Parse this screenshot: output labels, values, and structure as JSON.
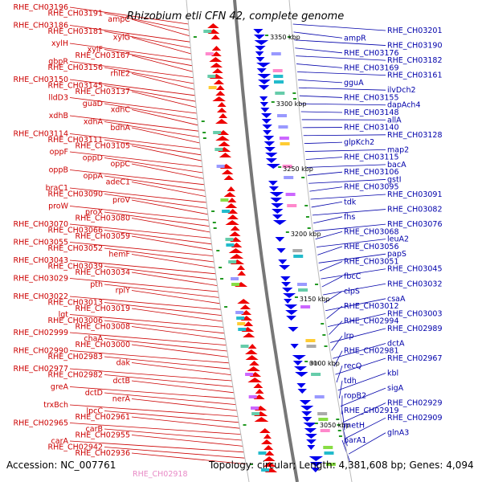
{
  "title": "Rhizobium etli CFN 42, complete genome",
  "footer": {
    "accession": "Accession: NC_007761",
    "topology": "Topology: circular; Length: 4,381,608 bp; Genes: 4,094",
    "truncated_label": "RHE_CH02918"
  },
  "colors": {
    "left_labels": "#cc0000",
    "right_labels": "#0000aa",
    "forward_genes": "#ee0000",
    "reverse_genes": "#0000ee",
    "backbone": "#777777",
    "tick": "#229922",
    "pink_label": "#e88ac6"
  },
  "kbp_marks": [
    {
      "label": "3350 kbp"
    },
    {
      "label": "3300 kbp"
    },
    {
      "label": "3250 kbp"
    },
    {
      "label": "3200 kbp"
    },
    {
      "label": "3150 kbp"
    },
    {
      "label": "3100 kbp"
    },
    {
      "label": "3050 kbp"
    }
  ],
  "left_labels": [
    "RHE_CH03196",
    "RHE_CH03191",
    "ampC",
    "RHE_CH03186",
    "RHE_CH03181",
    "xylG",
    "xylH",
    "xylF",
    "RHE_CH03167",
    "gbpR",
    "RHE_CH03156",
    "rhlE2",
    "RHE_CH03150",
    "RHE_CH03145",
    "RHE_CH03137",
    "lldD3",
    "guaD",
    "xdhC",
    "xdhB",
    "xdhA",
    "bdhA",
    "RHE_CH03114",
    "RHE_CH03111",
    "RHE_CH03105",
    "oppF",
    "oppD",
    "oppC",
    "oppB",
    "oppA",
    "adeC1",
    "braC1",
    "RHE_CH03090",
    "proV",
    "proW",
    "proX",
    "RHE_CH03080",
    "RHE_CH03070",
    "RHE_CH03066",
    "RHE_CH03059",
    "RHE_CH03055",
    "RHE_CH03052",
    "hemF",
    "RHE_CH03043",
    "RHE_CH03039",
    "RHE_CH03034",
    "RHE_CH03029",
    "pth",
    "rplY",
    "RHE_CH03022",
    "RHE_CH03013",
    "RHE_CH03019",
    "lgt",
    "RHE_CH03006",
    "RHE_CH03008",
    "RHE_CH02999",
    "chaA",
    "RHE_CH03000",
    "RHE_CH02990",
    "RHE_CH02983",
    "dak",
    "RHE_CH02977",
    "RHE_CH02982",
    "dctB",
    "greA",
    "dctD",
    "nerA",
    "trxBch",
    "lpcC",
    "RHE_CH02961",
    "RHE_CH02965",
    "carB",
    "RHE_CH02955",
    "carA",
    "RHE_CH02942",
    "RHE_CH02936"
  ],
  "right_labels": [
    "RHE_CH03201",
    "ampR",
    "RHE_CH03190",
    "RHE_CH03176",
    "RHE_CH03182",
    "RHE_CH03169",
    "RHE_CH03161",
    "gguA",
    "ilvDch2",
    "RHE_CH03155",
    "dapAch4",
    "RHE_CH03148",
    "allA",
    "RHE_CH03140",
    "RHE_CH03128",
    "glpKch2",
    "map2",
    "RHE_CH03115",
    "bacA",
    "RHE_CH03106",
    "gstI",
    "RHE_CH03095",
    "RHE_CH03091",
    "tdk",
    "RHE_CH03082",
    "fhs",
    "RHE_CH03076",
    "RHE_CH03068",
    "leuA2",
    "RHE_CH03056",
    "papS",
    "RHE_CH03051",
    "RHE_CH03045",
    "fbcC",
    "RHE_CH03032",
    "clpS",
    "csaA",
    "RHE_CH03012",
    "RHE_CH03003",
    "RHE_CH02994",
    "RHE_CH02989",
    "lrp",
    "dctA",
    "RHE_CH02981",
    "RHE_CH02967",
    "recQ",
    "kbl",
    "tdh",
    "sigA",
    "ropB2",
    "RHE_CH02929",
    "RHE_CH02919",
    "RHE_CH02909",
    "metH",
    "glnA3",
    "parA1"
  ]
}
